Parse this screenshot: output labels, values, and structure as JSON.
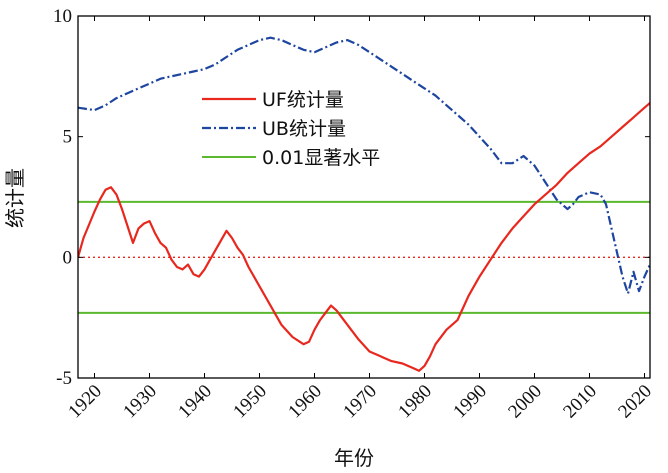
{
  "chart_data": {
    "type": "line",
    "xlabel": "年份",
    "ylabel": "统计量",
    "xlim": [
      1917,
      2021
    ],
    "ylim": [
      -5,
      10
    ],
    "xticks": [
      "1920",
      "1930",
      "1940",
      "1950",
      "1960",
      "1970",
      "1980",
      "1990",
      "2000",
      "2010",
      "2020"
    ],
    "yticks": [
      "-5",
      "0",
      "5",
      "10"
    ],
    "legend_position": "top-center",
    "reference_lines": {
      "significance": [
        2.3,
        -2.3
      ],
      "zero": 0
    },
    "series": [
      {
        "name": "UF统计量",
        "color": "#e8281e",
        "style": "solid",
        "x": [
          1917,
          1918,
          1920,
          1921,
          1922,
          1923,
          1924,
          1925,
          1926,
          1927,
          1928,
          1929,
          1930,
          1931,
          1932,
          1933,
          1934,
          1935,
          1936,
          1937,
          1938,
          1939,
          1940,
          1941,
          1942,
          1943,
          1944,
          1945,
          1946,
          1947,
          1948,
          1950,
          1952,
          1954,
          1956,
          1958,
          1959,
          1960,
          1961,
          1962,
          1963,
          1964,
          1965,
          1966,
          1968,
          1970,
          1972,
          1974,
          1976,
          1978,
          1979,
          1980,
          1981,
          1982,
          1984,
          1986,
          1987,
          1988,
          1990,
          1992,
          1994,
          1996,
          1998,
          2000,
          2002,
          2004,
          2006,
          2008,
          2010,
          2012,
          2014,
          2016,
          2018,
          2020,
          2021
        ],
        "values": [
          0.0,
          0.8,
          1.9,
          2.4,
          2.8,
          2.9,
          2.6,
          2.0,
          1.3,
          0.6,
          1.2,
          1.4,
          1.5,
          1.0,
          0.6,
          0.4,
          -0.1,
          -0.4,
          -0.5,
          -0.3,
          -0.7,
          -0.8,
          -0.5,
          -0.1,
          0.3,
          0.7,
          1.1,
          0.8,
          0.4,
          0.1,
          -0.4,
          -1.2,
          -2.0,
          -2.8,
          -3.3,
          -3.6,
          -3.5,
          -3.0,
          -2.6,
          -2.3,
          -2.0,
          -2.2,
          -2.5,
          -2.8,
          -3.4,
          -3.9,
          -4.1,
          -4.3,
          -4.4,
          -4.6,
          -4.7,
          -4.5,
          -4.1,
          -3.6,
          -3.0,
          -2.6,
          -2.1,
          -1.6,
          -0.8,
          -0.1,
          0.6,
          1.2,
          1.7,
          2.2,
          2.6,
          3.0,
          3.5,
          3.9,
          4.3,
          4.6,
          5.0,
          5.4,
          5.8,
          6.2,
          6.4
        ]
      },
      {
        "name": "UB统计量",
        "color": "#1e46a0",
        "style": "dashdot",
        "x": [
          1917,
          1920,
          1922,
          1924,
          1926,
          1928,
          1930,
          1932,
          1934,
          1936,
          1938,
          1940,
          1942,
          1944,
          1946,
          1948,
          1950,
          1952,
          1954,
          1956,
          1958,
          1960,
          1962,
          1964,
          1966,
          1968,
          1970,
          1972,
          1974,
          1976,
          1978,
          1980,
          1982,
          1984,
          1986,
          1988,
          1990,
          1992,
          1994,
          1996,
          1998,
          2000,
          2002,
          2004,
          2006,
          2007,
          2008,
          2010,
          2012,
          2013,
          2014,
          2015,
          2016,
          2017,
          2018,
          2019,
          2020,
          2021
        ],
        "values": [
          6.2,
          6.1,
          6.3,
          6.6,
          6.8,
          7.0,
          7.2,
          7.4,
          7.5,
          7.6,
          7.7,
          7.8,
          8.0,
          8.3,
          8.6,
          8.8,
          9.0,
          9.1,
          9.0,
          8.8,
          8.6,
          8.5,
          8.7,
          8.9,
          9.0,
          8.8,
          8.5,
          8.2,
          7.9,
          7.6,
          7.3,
          7.0,
          6.7,
          6.3,
          5.9,
          5.5,
          5.0,
          4.5,
          3.9,
          3.9,
          4.2,
          3.8,
          3.1,
          2.4,
          2.0,
          2.2,
          2.5,
          2.7,
          2.6,
          2.2,
          1.2,
          0.2,
          -0.8,
          -1.5,
          -0.6,
          -1.4,
          -0.8,
          -0.3
        ]
      },
      {
        "name": "0.01显著水平",
        "color": "#5cb82e",
        "style": "solid",
        "x": [
          1917,
          2021
        ],
        "values": [
          2.3,
          2.3
        ]
      }
    ]
  }
}
